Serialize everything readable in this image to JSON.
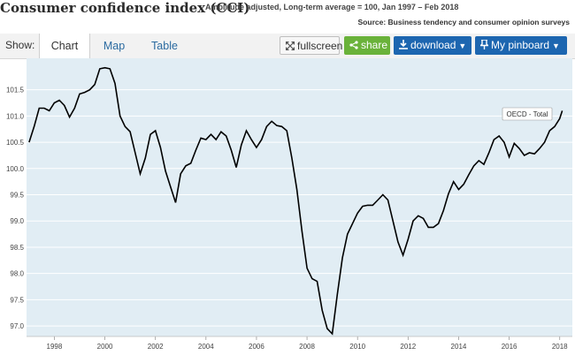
{
  "header": {
    "title": "Consumer confidence index (CCI)",
    "subtitle": "Amplitude adjusted, Long-term average = 100, Jan 1997 – Feb 2018",
    "source": "Source: Business tendency and consumer opinion surveys"
  },
  "toolbar": {
    "show_label": "Show:",
    "tabs": [
      {
        "label": "Chart",
        "active": true
      },
      {
        "label": "Map",
        "active": false
      },
      {
        "label": "Table",
        "active": false
      }
    ],
    "fullscreen_label": "fullscreen",
    "share_label": "share",
    "download_label": "download",
    "pinboard_label": "My pinboard"
  },
  "colors": {
    "plot_bg": "#e1edf4",
    "line": "#000000",
    "share": "#6ab23a",
    "primary": "#1d66b0"
  },
  "chart_data": {
    "type": "line",
    "title": "",
    "xlabel": "",
    "ylabel": "",
    "xlim": [
      1996.9,
      2018.5
    ],
    "ylim": [
      96.8,
      102.1
    ],
    "x_ticks": [
      "1998",
      "2000",
      "2002",
      "2004",
      "2006",
      "2008",
      "2010",
      "2012",
      "2014",
      "2016",
      "2018"
    ],
    "y_ticks": [
      "97.0",
      "97.5",
      "98.0",
      "98.5",
      "99.0",
      "99.5",
      "100.0",
      "100.5",
      "101.0",
      "101.5"
    ],
    "grid": true,
    "series": [
      {
        "name": "OECD - Total",
        "x": [
          1997.0,
          1997.2,
          1997.4,
          1997.6,
          1997.8,
          1998.0,
          1998.2,
          1998.4,
          1998.6,
          1998.8,
          1999.0,
          1999.2,
          1999.4,
          1999.6,
          1999.8,
          2000.0,
          2000.2,
          2000.4,
          2000.6,
          2000.8,
          2001.0,
          2001.2,
          2001.4,
          2001.6,
          2001.8,
          2002.0,
          2002.2,
          2002.4,
          2002.6,
          2002.8,
          2003.0,
          2003.2,
          2003.4,
          2003.6,
          2003.8,
          2004.0,
          2004.2,
          2004.4,
          2004.6,
          2004.8,
          2005.0,
          2005.2,
          2005.4,
          2005.6,
          2005.8,
          2006.0,
          2006.2,
          2006.4,
          2006.6,
          2006.8,
          2007.0,
          2007.2,
          2007.4,
          2007.6,
          2007.8,
          2008.0,
          2008.2,
          2008.4,
          2008.6,
          2008.8,
          2009.0,
          2009.2,
          2009.4,
          2009.6,
          2009.8,
          2010.0,
          2010.2,
          2010.4,
          2010.6,
          2010.8,
          2011.0,
          2011.2,
          2011.4,
          2011.6,
          2011.8,
          2012.0,
          2012.2,
          2012.4,
          2012.6,
          2012.8,
          2013.0,
          2013.2,
          2013.4,
          2013.6,
          2013.8,
          2014.0,
          2014.2,
          2014.4,
          2014.6,
          2014.8,
          2015.0,
          2015.2,
          2015.4,
          2015.6,
          2015.8,
          2016.0,
          2016.2,
          2016.4,
          2016.6,
          2016.8,
          2017.0,
          2017.2,
          2017.4,
          2017.6,
          2017.8,
          2018.0,
          2018.1
        ],
        "values": [
          100.5,
          100.8,
          101.15,
          101.15,
          101.1,
          101.25,
          101.3,
          101.2,
          100.98,
          101.15,
          101.42,
          101.45,
          101.5,
          101.6,
          101.9,
          101.92,
          101.9,
          101.62,
          101.0,
          100.8,
          100.7,
          100.3,
          99.9,
          100.2,
          100.65,
          100.72,
          100.4,
          99.95,
          99.65,
          99.35,
          99.9,
          100.05,
          100.1,
          100.35,
          100.58,
          100.55,
          100.65,
          100.55,
          100.7,
          100.62,
          100.35,
          100.02,
          100.45,
          100.72,
          100.55,
          100.4,
          100.55,
          100.8,
          100.9,
          100.82,
          100.8,
          100.72,
          100.2,
          99.6,
          98.8,
          98.1,
          97.9,
          97.85,
          97.3,
          96.95,
          96.85,
          97.6,
          98.3,
          98.75,
          98.95,
          99.15,
          99.28,
          99.3,
          99.3,
          99.4,
          99.5,
          99.4,
          99.0,
          98.6,
          98.35,
          98.65,
          99.0,
          99.1,
          99.05,
          98.88,
          98.88,
          98.95,
          99.2,
          99.52,
          99.75,
          99.6,
          99.7,
          99.88,
          100.05,
          100.15,
          100.08,
          100.3,
          100.55,
          100.62,
          100.5,
          100.22,
          100.48,
          100.38,
          100.25,
          100.3,
          100.28,
          100.38,
          100.5,
          100.72,
          100.8,
          100.95,
          101.1
        ]
      }
    ]
  }
}
